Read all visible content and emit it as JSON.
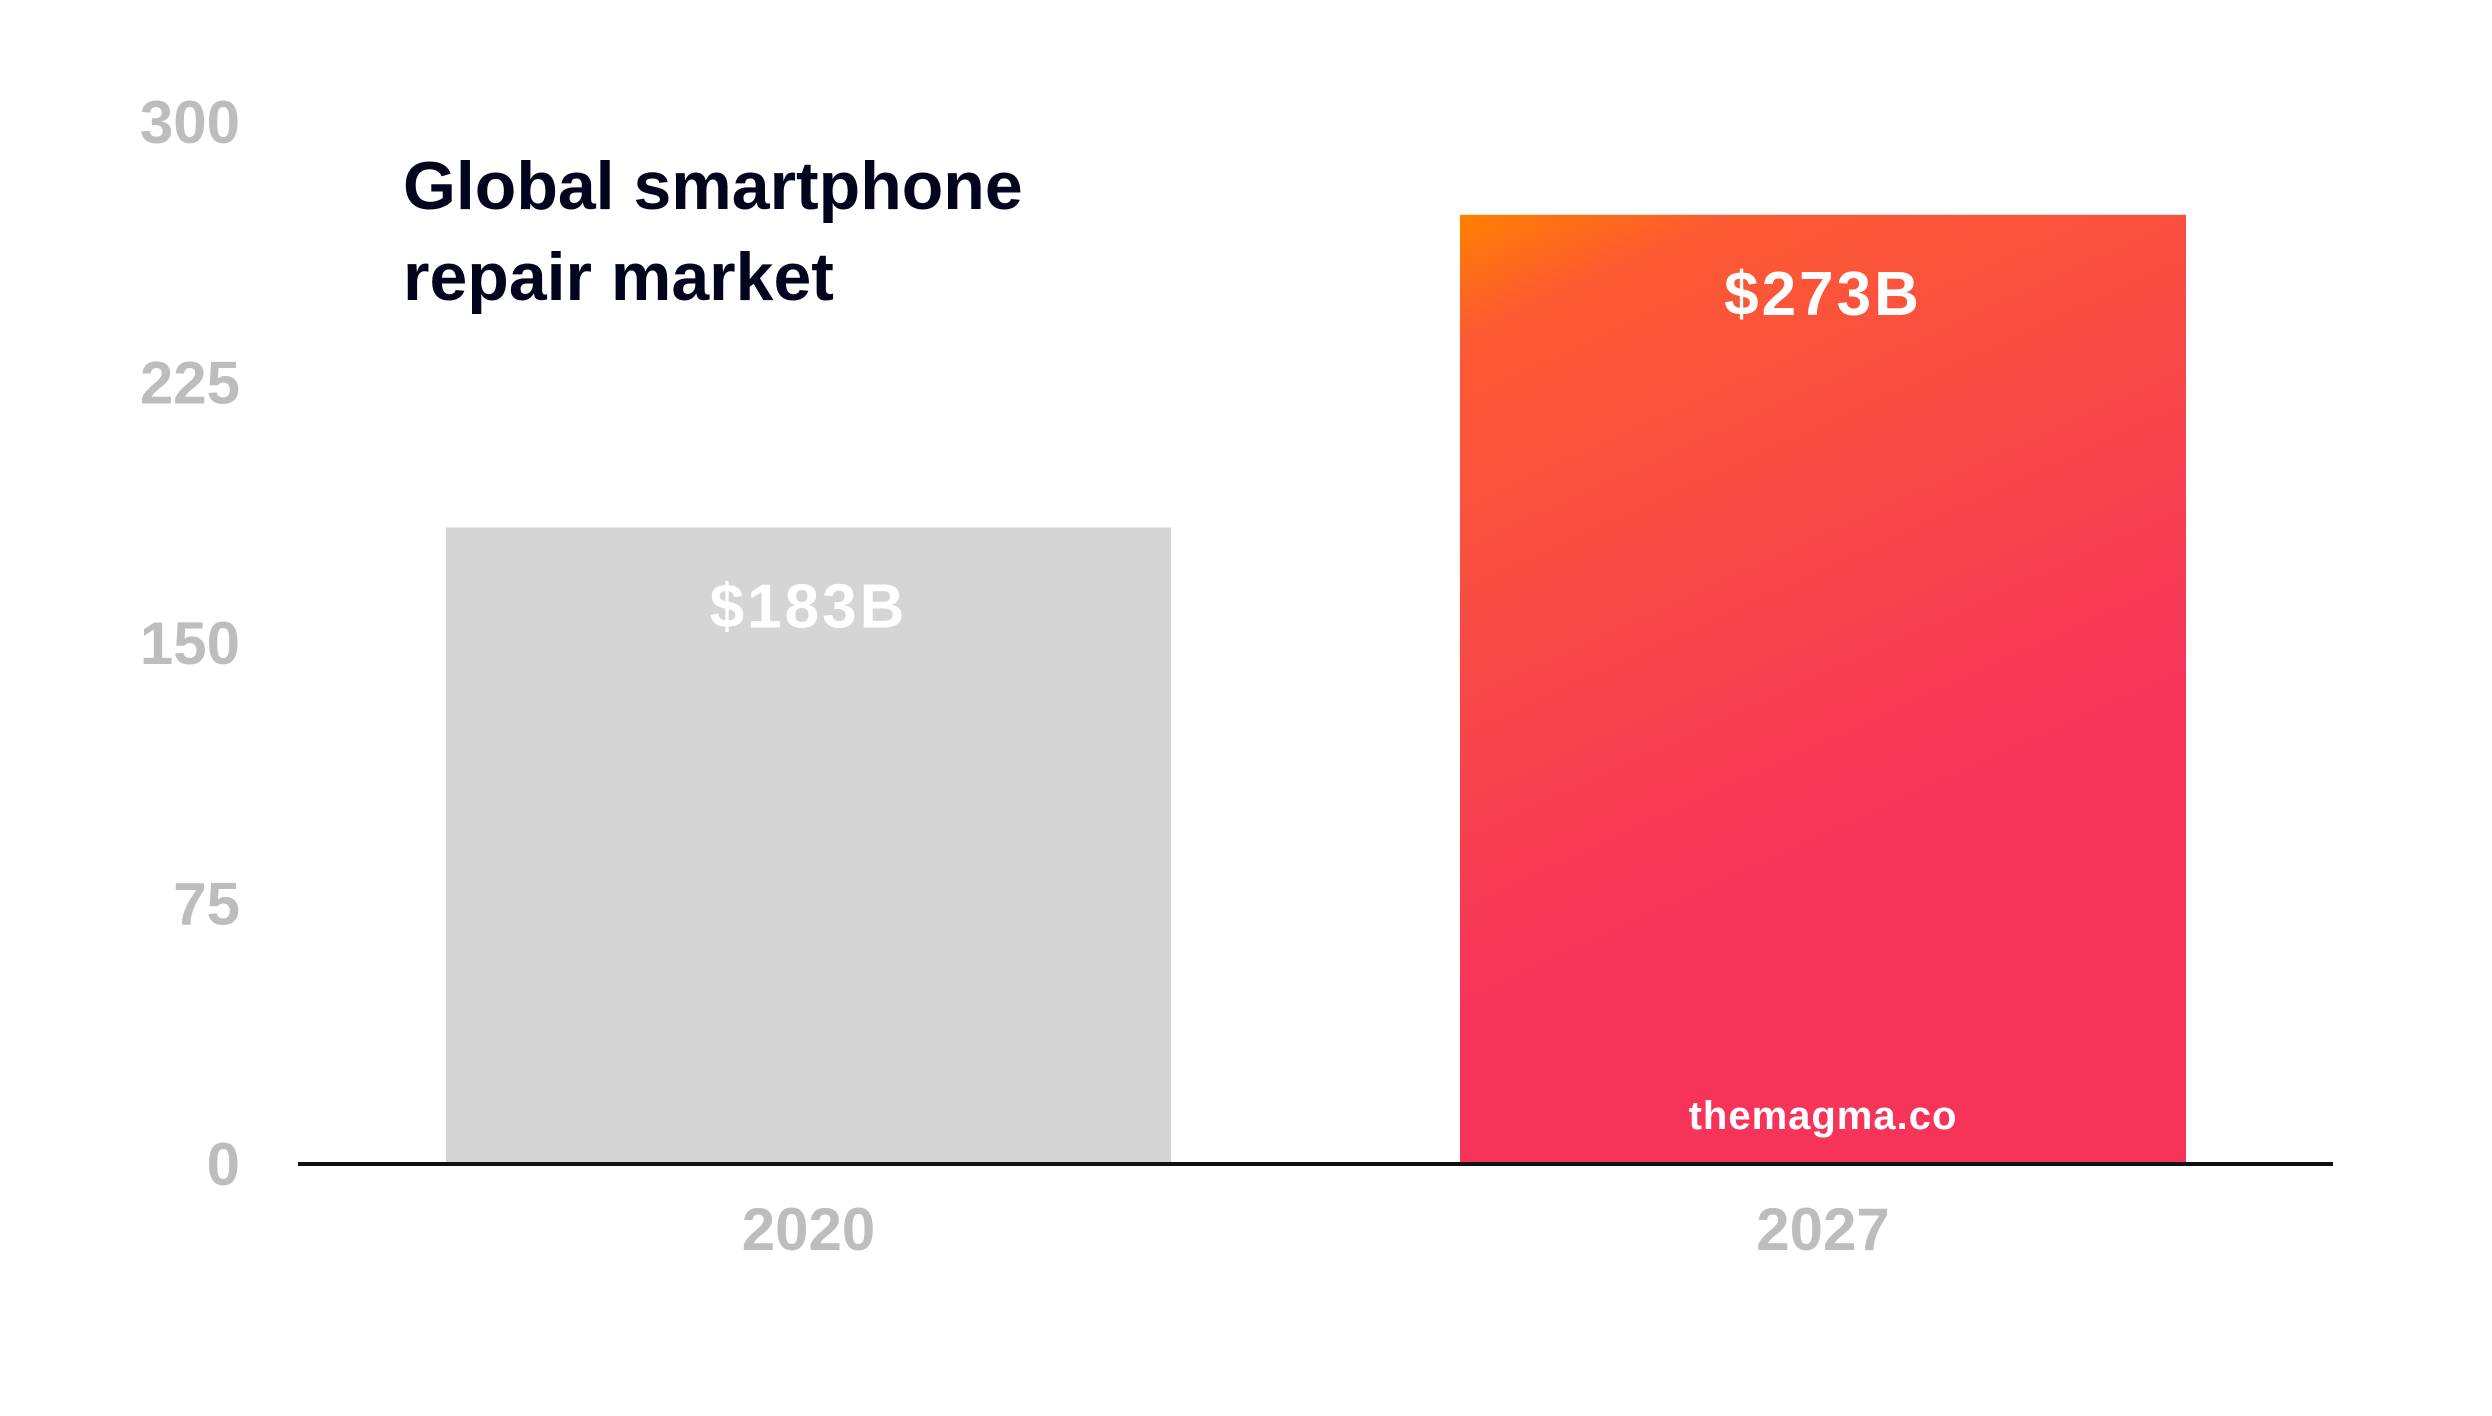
{
  "chart_data": {
    "type": "bar",
    "title": "Global smartphone repair market",
    "title_lines": [
      "Global smartphone",
      "repair market"
    ],
    "categories": [
      "2020",
      "2027"
    ],
    "values": [
      183,
      273
    ],
    "value_labels": [
      "$183B",
      "$273B"
    ],
    "unit": "USD billions",
    "xlabel": "",
    "ylabel": "",
    "ylim": [
      0,
      300
    ],
    "yticks": [
      0,
      75,
      150,
      225,
      300
    ],
    "grid": false,
    "legend": "none",
    "bar_colors": [
      "#d5d5d5",
      "gradient"
    ],
    "gradient_colors": [
      "#ff8000",
      "#fc5a32",
      "#f84848",
      "#f6345a"
    ],
    "watermark": "themagma.co"
  },
  "colors": {
    "title": "#03051f",
    "ticks": "#bdbdbd",
    "axis": "#111111",
    "bar_2020": "#d5d5d5",
    "value_label": "#ffffff"
  }
}
